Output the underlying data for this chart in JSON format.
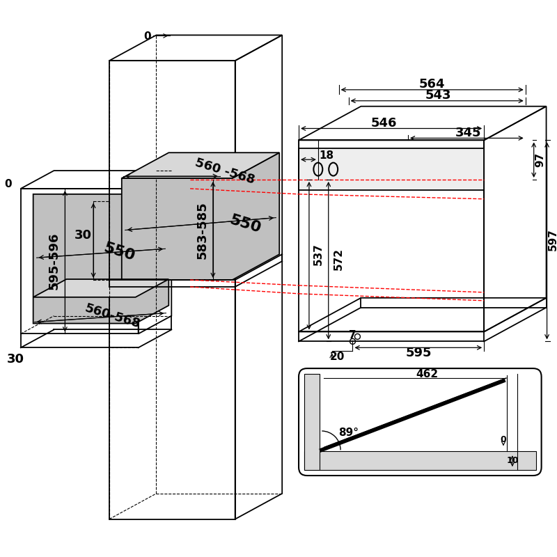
{
  "bg_color": "#ffffff",
  "line_color": "#000000",
  "red_dash_color": "#ff0000",
  "gray_fill": "#c0c0c0",
  "light_gray_fill": "#d8d8d8",
  "annotations": {
    "dim_0_top": "0",
    "dim_0_left_mid": "0",
    "dim_30_top": "30",
    "dim_30_bot": "30",
    "dim_560_568_top": "560 -568",
    "dim_583_585": "583-585",
    "dim_550_top": "550",
    "dim_550_bot": "550",
    "dim_595_596": "595-596",
    "dim_560_568_bot": "560-568",
    "dim_564": "564",
    "dim_543": "543",
    "dim_546": "546",
    "dim_345": "345",
    "dim_18": "18",
    "dim_97": "97",
    "dim_537": "537",
    "dim_572": "572",
    "dim_595": "595",
    "dim_597": "597",
    "dim_7": "7",
    "dim_20": "20",
    "dim_462": "462",
    "dim_89": "89°",
    "dim_0_inset": "0",
    "dim_10": "10"
  },
  "font_size_large": 13,
  "font_size_medium": 11,
  "font_size_small": 9
}
